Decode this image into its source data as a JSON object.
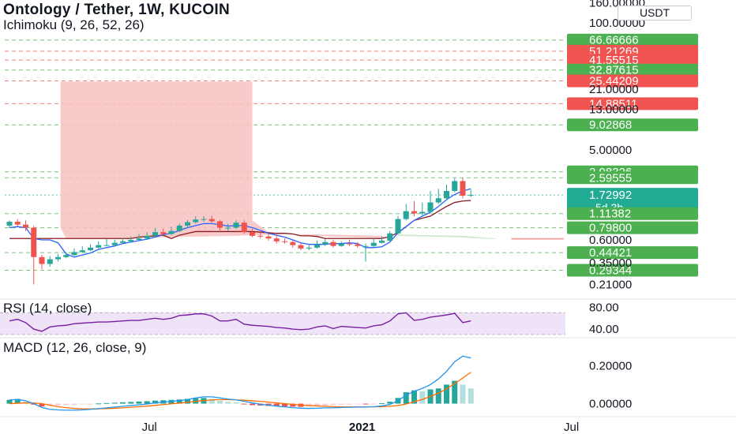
{
  "header": {
    "title": "Ontology / Tether, 1W, KUCOIN",
    "indicator": "Ichimoku (9, 26, 52, 26)",
    "currency_button": "USDT"
  },
  "colors": {
    "up": "#26a69a",
    "down": "#ef5350",
    "label_green": "#4caf50",
    "label_red": "#f05350",
    "label_teal": "#22ab94",
    "tenkan": "#2962ff",
    "kijun": "#8b1a1a",
    "cloud_red": "#f8c1c1",
    "cloud_green": "#c8e6c9",
    "rsi": "#7b1fa2",
    "rsi_band": "#efe3f7",
    "macd": "#2196f3",
    "signal": "#ff6d00"
  },
  "chart_data": [
    {
      "type": "candlestick",
      "pane": "price",
      "scale": "log",
      "x": [
        "2020-03-02",
        "2020-03-09",
        "2020-03-16",
        "2020-03-23",
        "2020-03-30",
        "2020-04-06",
        "2020-04-13",
        "2020-04-20",
        "2020-04-27",
        "2020-05-04",
        "2020-05-11",
        "2020-05-18",
        "2020-05-25",
        "2020-06-01",
        "2020-06-08",
        "2020-06-15",
        "2020-06-22",
        "2020-06-29",
        "2020-07-06",
        "2020-07-13",
        "2020-07-20",
        "2020-07-27",
        "2020-08-03",
        "2020-08-10",
        "2020-08-17",
        "2020-08-24",
        "2020-08-31",
        "2020-09-07",
        "2020-09-14",
        "2020-09-21",
        "2020-09-28",
        "2020-10-05",
        "2020-10-12",
        "2020-10-19",
        "2020-10-26",
        "2020-11-02",
        "2020-11-09",
        "2020-11-16",
        "2020-11-23",
        "2020-11-30",
        "2020-12-07",
        "2020-12-14",
        "2020-12-21",
        "2020-12-28",
        "2021-01-04",
        "2021-01-11",
        "2021-01-18",
        "2021-01-25",
        "2021-02-01",
        "2021-02-08",
        "2021-02-15",
        "2021-02-22",
        "2021-03-01",
        "2021-03-08",
        "2021-03-15",
        "2021-03-22",
        "2021-03-29",
        "2021-04-05"
      ],
      "open": [
        0.84,
        0.92,
        0.86,
        0.8,
        0.4,
        0.34,
        0.38,
        0.4,
        0.42,
        0.45,
        0.47,
        0.5,
        0.53,
        0.53,
        0.56,
        0.58,
        0.6,
        0.62,
        0.66,
        0.72,
        0.69,
        0.74,
        0.84,
        0.91,
        0.97,
        0.98,
        0.93,
        0.8,
        0.8,
        0.9,
        0.72,
        0.66,
        0.65,
        0.62,
        0.58,
        0.57,
        0.53,
        0.49,
        0.5,
        0.54,
        0.57,
        0.52,
        0.55,
        0.54,
        0.52,
        0.52,
        0.56,
        0.59,
        0.7,
        0.98,
        1.18,
        1.12,
        1.16,
        1.45,
        1.6,
        1.9,
        2.4,
        1.7
      ],
      "high": [
        0.95,
        0.98,
        0.95,
        0.84,
        0.42,
        0.41,
        0.43,
        0.45,
        0.49,
        0.52,
        0.54,
        0.58,
        0.61,
        0.6,
        0.63,
        0.65,
        0.69,
        0.72,
        0.79,
        0.78,
        0.82,
        0.88,
        0.96,
        1.05,
        1.05,
        1.06,
        0.96,
        0.88,
        0.95,
        0.95,
        0.78,
        0.73,
        0.7,
        0.67,
        0.62,
        0.59,
        0.56,
        0.53,
        0.59,
        0.61,
        0.6,
        0.58,
        0.6,
        0.57,
        0.55,
        0.62,
        0.65,
        0.74,
        1.05,
        1.4,
        1.5,
        1.45,
        1.9,
        2.0,
        2.2,
        2.55,
        2.6,
        1.95
      ],
      "low": [
        0.8,
        0.82,
        0.74,
        0.21,
        0.3,
        0.32,
        0.36,
        0.39,
        0.41,
        0.44,
        0.46,
        0.49,
        0.52,
        0.51,
        0.55,
        0.57,
        0.59,
        0.6,
        0.64,
        0.67,
        0.67,
        0.72,
        0.8,
        0.88,
        0.92,
        0.9,
        0.75,
        0.74,
        0.78,
        0.69,
        0.64,
        0.62,
        0.59,
        0.55,
        0.55,
        0.5,
        0.47,
        0.47,
        0.49,
        0.52,
        0.5,
        0.51,
        0.52,
        0.5,
        0.36,
        0.5,
        0.55,
        0.57,
        0.68,
        0.95,
        1.05,
        1.05,
        1.12,
        1.4,
        1.55,
        1.85,
        1.6,
        1.65
      ],
      "close": [
        0.92,
        0.86,
        0.8,
        0.4,
        0.34,
        0.38,
        0.4,
        0.42,
        0.45,
        0.47,
        0.5,
        0.53,
        0.53,
        0.56,
        0.58,
        0.6,
        0.62,
        0.66,
        0.72,
        0.69,
        0.74,
        0.84,
        0.91,
        0.97,
        0.98,
        0.93,
        0.8,
        0.8,
        0.9,
        0.72,
        0.66,
        0.65,
        0.62,
        0.58,
        0.57,
        0.53,
        0.49,
        0.5,
        0.54,
        0.57,
        0.52,
        0.55,
        0.54,
        0.52,
        0.52,
        0.56,
        0.59,
        0.7,
        0.98,
        1.18,
        1.12,
        1.16,
        1.45,
        1.6,
        1.9,
        2.4,
        1.7,
        1.73
      ],
      "tenkan": [
        0.8,
        0.82,
        0.8,
        0.62,
        0.6,
        0.6,
        0.56,
        0.43,
        0.4,
        0.42,
        0.44,
        0.48,
        0.5,
        0.52,
        0.55,
        0.57,
        0.59,
        0.61,
        0.64,
        0.68,
        0.7,
        0.75,
        0.8,
        0.84,
        0.88,
        0.88,
        0.86,
        0.83,
        0.84,
        0.84,
        0.8,
        0.75,
        0.7,
        0.67,
        0.64,
        0.6,
        0.56,
        0.54,
        0.54,
        0.54,
        0.55,
        0.55,
        0.56,
        0.55,
        0.5,
        0.5,
        0.51,
        0.57,
        0.71,
        0.82,
        0.95,
        1.05,
        1.15,
        1.32,
        1.55,
        1.75,
        1.9,
        2.0
      ],
      "kijun": [
        0.62,
        0.62,
        0.62,
        0.62,
        0.62,
        0.62,
        0.62,
        0.62,
        0.62,
        0.62,
        0.62,
        0.62,
        0.62,
        0.62,
        0.62,
        0.62,
        0.64,
        0.65,
        0.66,
        0.67,
        0.62,
        0.67,
        0.7,
        0.73,
        0.73,
        0.73,
        0.73,
        0.73,
        0.73,
        0.73,
        0.73,
        0.72,
        0.71,
        0.7,
        0.7,
        0.69,
        0.66,
        0.66,
        0.65,
        0.62,
        0.62,
        0.62,
        0.62,
        0.62,
        0.62,
        0.62,
        0.62,
        0.65,
        0.71,
        0.82,
        0.95,
        1.0,
        1.05,
        1.18,
        1.32,
        1.45,
        1.5,
        1.52
      ],
      "cloud_red_top": 25.0,
      "price_labels": [
        {
          "value": "66.66666",
          "color": "label_green"
        },
        {
          "value": "51.21269",
          "color": "label_red"
        },
        {
          "value": "41.55515",
          "color": "label_red"
        },
        {
          "value": "32.87615",
          "color": "label_green"
        },
        {
          "value": "25.44209",
          "color": "label_red"
        },
        {
          "value": "14.88511",
          "color": "label_red"
        },
        {
          "value": "9.02868",
          "color": "label_green"
        },
        {
          "value": "2.98326",
          "color": "label_green"
        },
        {
          "value": "2.59555",
          "color": "label_green"
        },
        {
          "value": "1.72992",
          "color": "label_teal",
          "sub": "5d 3h"
        },
        {
          "value": "1.11382",
          "color": "label_green"
        },
        {
          "value": "0.79800",
          "color": "label_green"
        },
        {
          "value": "0.44421",
          "color": "label_green"
        },
        {
          "value": "0.29344",
          "color": "label_green"
        }
      ],
      "y_ticks": [
        "160.00000",
        "100.00000",
        "21.00000",
        "13.00000",
        "5.00000",
        "0.60000",
        "0.35000",
        "0.21000"
      ],
      "x_ticks": [
        "Jul",
        "2021",
        "Jul"
      ],
      "x_tick_dates": [
        "2020-07-01",
        "2021-01-01",
        "2021-07-01"
      ]
    },
    {
      "type": "line",
      "pane": "rsi",
      "label": "RSI (14, close)",
      "ylim": [
        30,
        85
      ],
      "band": [
        30,
        70
      ],
      "y_ticks": [
        "80.00",
        "40.00"
      ],
      "values": [
        55,
        58,
        52,
        40,
        36,
        44,
        46,
        47,
        50,
        51,
        52,
        53,
        53,
        54,
        55,
        56,
        56,
        58,
        60,
        58,
        60,
        65,
        66,
        68,
        68,
        64,
        55,
        55,
        58,
        49,
        47,
        46,
        45,
        43,
        42,
        40,
        39,
        40,
        44,
        46,
        41,
        45,
        44,
        43,
        42,
        46,
        48,
        55,
        68,
        70,
        56,
        58,
        62,
        64,
        66,
        69,
        52,
        55
      ]
    },
    {
      "type": "bar+line",
      "pane": "macd",
      "label": "MACD (12, 26, close, 9)",
      "y_ticks": [
        "0.20000",
        "0.00000"
      ],
      "ylim": [
        -0.06,
        0.33
      ],
      "histogram": [
        0.02,
        0.025,
        0.01,
        -0.005,
        -0.015,
        -0.012,
        -0.01,
        -0.008,
        -0.006,
        -0.004,
        -0.002,
        0.001,
        0.003,
        0.005,
        0.007,
        0.009,
        0.011,
        0.013,
        0.016,
        0.018,
        0.02,
        0.022,
        0.025,
        0.028,
        0.03,
        0.025,
        0.015,
        0.01,
        0.008,
        -0.004,
        -0.008,
        -0.01,
        -0.012,
        -0.014,
        -0.015,
        -0.016,
        -0.017,
        -0.015,
        -0.013,
        -0.01,
        -0.008,
        -0.006,
        -0.005,
        -0.004,
        -0.004,
        -0.002,
        0.002,
        0.01,
        0.03,
        0.06,
        0.07,
        0.065,
        0.075,
        0.08,
        0.1,
        0.12,
        0.1,
        0.08
      ],
      "macd": [
        0.02,
        0.022,
        0.015,
        0.0,
        -0.02,
        -0.03,
        -0.033,
        -0.034,
        -0.034,
        -0.033,
        -0.03,
        -0.026,
        -0.022,
        -0.018,
        -0.014,
        -0.01,
        -0.006,
        -0.002,
        0.004,
        0.008,
        0.012,
        0.016,
        0.022,
        0.03,
        0.036,
        0.036,
        0.03,
        0.024,
        0.02,
        0.012,
        0.004,
        -0.003,
        -0.008,
        -0.013,
        -0.017,
        -0.021,
        -0.024,
        -0.025,
        -0.024,
        -0.022,
        -0.022,
        -0.02,
        -0.019,
        -0.018,
        -0.018,
        -0.016,
        -0.012,
        -0.004,
        0.015,
        0.045,
        0.065,
        0.08,
        0.1,
        0.13,
        0.17,
        0.22,
        0.25,
        0.24
      ],
      "signal": [
        0.0,
        0.002,
        0.004,
        0.003,
        0.0,
        -0.008,
        -0.016,
        -0.021,
        -0.025,
        -0.027,
        -0.028,
        -0.027,
        -0.026,
        -0.024,
        -0.022,
        -0.019,
        -0.016,
        -0.013,
        -0.009,
        -0.005,
        -0.001,
        0.003,
        0.007,
        0.012,
        0.016,
        0.02,
        0.021,
        0.021,
        0.02,
        0.018,
        0.015,
        0.012,
        0.008,
        0.004,
        0.0,
        -0.004,
        -0.007,
        -0.01,
        -0.012,
        -0.014,
        -0.016,
        -0.017,
        -0.017,
        -0.017,
        -0.017,
        -0.017,
        -0.016,
        -0.014,
        -0.01,
        -0.002,
        0.01,
        0.022,
        0.038,
        0.055,
        0.078,
        0.105,
        0.135,
        0.165
      ]
    }
  ]
}
